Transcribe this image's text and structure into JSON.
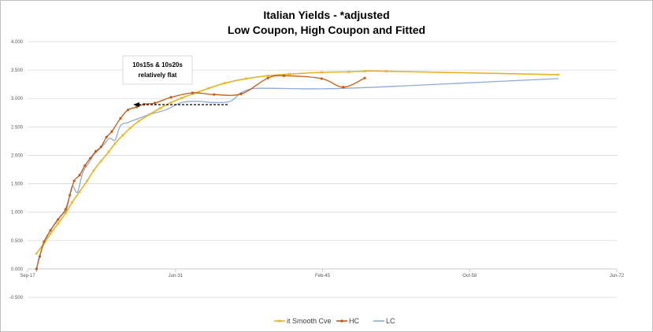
{
  "chart_data": {
    "type": "line",
    "title": "Italian Yields - *adjusted",
    "subtitle": "Low Coupon, High Coupon and Fitted",
    "xlabel": "",
    "ylabel": "",
    "x_ticks": [
      "Sep-17",
      "Jun-31",
      "Feb-45",
      "Oct-58",
      "Jun-72"
    ],
    "x_tick_years": [
      2017.67,
      2031.42,
      2045.08,
      2058.75,
      2072.42
    ],
    "xlim": [
      2017.67,
      2072.42
    ],
    "ylim": [
      -0.5,
      4.0
    ],
    "y_ticks": [
      "-0.500",
      "0.000",
      "0.500",
      "1.000",
      "1.500",
      "2.000",
      "2.500",
      "3.000",
      "3.500",
      "4.000"
    ],
    "y_tick_values": [
      -0.5,
      0,
      0.5,
      1,
      1.5,
      2,
      2.5,
      3,
      3.5,
      4
    ],
    "grid": "horizontal",
    "legend_position": "bottom",
    "annotation": {
      "text_line1": "10s15s & 10s20s",
      "text_line2": "relatively flat"
    },
    "series": [
      {
        "name": "it Smooth Cve",
        "color": "#e6b422",
        "marker": "cross",
        "x": [
          2018.5,
          2019.2,
          2019.8,
          2020.5,
          2021.2,
          2021.8,
          2022.5,
          2023.2,
          2023.8,
          2024.5,
          2025.2,
          2025.8,
          2026.5,
          2027.2,
          2028.0,
          2029.0,
          2030.0,
          2031.0,
          2032.0,
          2033.0,
          2034.5,
          2036.0,
          2038.0,
          2040.0,
          2042.0,
          2045.0,
          2047.5,
          2049.0,
          2051.0,
          2067.0
        ],
        "y": [
          0.27,
          0.45,
          0.62,
          0.8,
          0.98,
          1.17,
          1.36,
          1.55,
          1.73,
          1.9,
          2.06,
          2.21,
          2.35,
          2.48,
          2.6,
          2.72,
          2.83,
          2.93,
          3.01,
          3.08,
          3.18,
          3.27,
          3.35,
          3.4,
          3.43,
          3.46,
          3.47,
          3.48,
          3.48,
          3.42
        ]
      },
      {
        "name": "HC",
        "color": "#c55a11",
        "marker": "circle",
        "x": [
          2018.5,
          2018.8,
          2019.2,
          2019.8,
          2020.5,
          2021.2,
          2021.6,
          2022.0,
          2022.5,
          2023.0,
          2023.5,
          2024.0,
          2024.5,
          2025.0,
          2025.5,
          2026.3,
          2027.0,
          2027.8,
          2028.5,
          2029.5,
          2031.0,
          2033.0,
          2035.0,
          2037.5,
          2040.0,
          2041.5,
          2045.0,
          2047.0,
          2049.0
        ],
        "y": [
          0.0,
          0.22,
          0.48,
          0.68,
          0.87,
          1.05,
          1.3,
          1.55,
          1.65,
          1.82,
          1.95,
          2.07,
          2.15,
          2.32,
          2.42,
          2.65,
          2.8,
          2.85,
          2.9,
          2.92,
          3.02,
          3.1,
          3.07,
          3.08,
          3.36,
          3.4,
          3.35,
          3.2,
          3.36
        ]
      },
      {
        "name": "LC",
        "color": "#8faadc",
        "marker": "none",
        "x": [
          2018.5,
          2018.7,
          2019.2,
          2019.7,
          2020.2,
          2020.8,
          2021.3,
          2021.8,
          2022.3,
          2022.8,
          2023.3,
          2023.8,
          2024.3,
          2024.8,
          2025.3,
          2025.8,
          2026.3,
          2027.0,
          2028.0,
          2029.0,
          2030.5,
          2032.0,
          2033.5,
          2035.0,
          2036.5,
          2037.5,
          2038.5,
          2040.0,
          2045.0,
          2050.0,
          2058.0,
          2067.0
        ],
        "y": [
          -0.05,
          0.18,
          0.45,
          0.65,
          0.8,
          0.95,
          1.05,
          1.45,
          1.35,
          1.7,
          1.85,
          2.0,
          2.1,
          2.2,
          2.3,
          2.27,
          2.52,
          2.58,
          2.65,
          2.72,
          2.8,
          2.93,
          2.95,
          2.93,
          2.95,
          3.1,
          3.17,
          3.18,
          3.17,
          3.2,
          3.27,
          3.35
        ]
      }
    ]
  }
}
